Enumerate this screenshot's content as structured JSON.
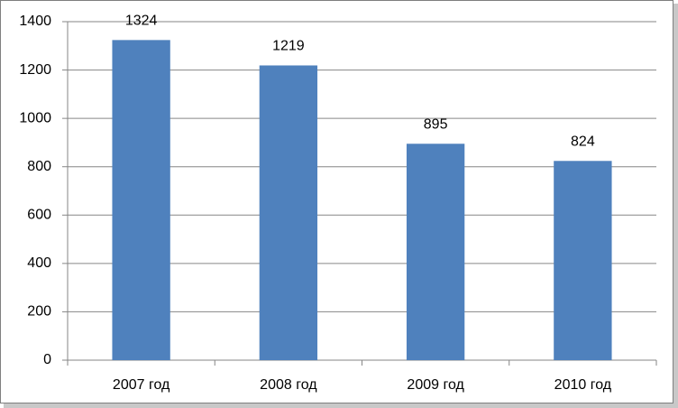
{
  "chart_data": {
    "type": "bar",
    "categories": [
      "2007 год",
      "2008 год",
      "2009 год",
      "2010 год"
    ],
    "values": [
      1324,
      1219,
      895,
      824
    ],
    "color": "#4f81bd",
    "ylim": [
      0,
      1400
    ],
    "yticks": [
      0,
      200,
      400,
      600,
      800,
      1000,
      1200,
      1400
    ],
    "grid": true
  }
}
